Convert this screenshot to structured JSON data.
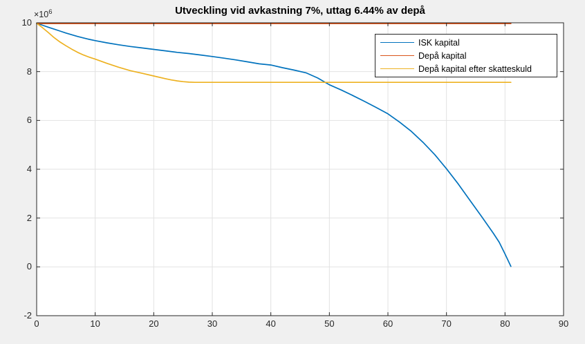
{
  "figure": {
    "background": "#f0f0f0",
    "plot_background": "#ffffff",
    "axis_color": "#262626",
    "grid_color": "#e2e2e2"
  },
  "y_axis_multiplier": {
    "base": "×10",
    "exponent": "6"
  },
  "chart_data": {
    "type": "line",
    "title": "Utveckling vid avkastning 7%, uttag 6.44% av depå",
    "xlabel": "",
    "ylabel": "",
    "xlim": [
      0,
      90
    ],
    "ylim_millions": [
      -2,
      10
    ],
    "xticks": [
      0,
      10,
      20,
      30,
      40,
      50,
      60,
      70,
      80,
      90
    ],
    "yticks": [
      -2,
      0,
      2,
      4,
      6,
      8,
      10
    ],
    "grid": true,
    "legend_position": "top-right",
    "y_unit": "x10^6",
    "series": [
      {
        "name": "ISK kapital",
        "color": "#0072BD",
        "points": [
          [
            0,
            9.98
          ],
          [
            1,
            9.9
          ],
          [
            2,
            9.82
          ],
          [
            3,
            9.74
          ],
          [
            4,
            9.66
          ],
          [
            5,
            9.58
          ],
          [
            6,
            9.51
          ],
          [
            7,
            9.44
          ],
          [
            8,
            9.38
          ],
          [
            9,
            9.32
          ],
          [
            10,
            9.27
          ],
          [
            12,
            9.18
          ],
          [
            14,
            9.1
          ],
          [
            16,
            9.03
          ],
          [
            18,
            8.97
          ],
          [
            20,
            8.91
          ],
          [
            22,
            8.85
          ],
          [
            24,
            8.79
          ],
          [
            26,
            8.74
          ],
          [
            28,
            8.68
          ],
          [
            30,
            8.62
          ],
          [
            32,
            8.55
          ],
          [
            34,
            8.48
          ],
          [
            36,
            8.4
          ],
          [
            38,
            8.32
          ],
          [
            40,
            8.27
          ],
          [
            42,
            8.16
          ],
          [
            44,
            8.06
          ],
          [
            46,
            7.95
          ],
          [
            48,
            7.74
          ],
          [
            50,
            7.46
          ],
          [
            52,
            7.25
          ],
          [
            54,
            7.02
          ],
          [
            56,
            6.78
          ],
          [
            58,
            6.53
          ],
          [
            60,
            6.27
          ],
          [
            62,
            5.93
          ],
          [
            64,
            5.55
          ],
          [
            66,
            5.1
          ],
          [
            68,
            4.6
          ],
          [
            70,
            4.02
          ],
          [
            72,
            3.4
          ],
          [
            74,
            2.73
          ],
          [
            76,
            2.06
          ],
          [
            78,
            1.38
          ],
          [
            79,
            1.01
          ],
          [
            80,
            0.53
          ],
          [
            81,
            0.02
          ]
        ]
      },
      {
        "name": "Depå kapital",
        "color": "#D95319",
        "points": [
          [
            0,
            9.97
          ],
          [
            81,
            9.97
          ]
        ]
      },
      {
        "name": "Depå kapital efter skatteskuld",
        "color": "#EDB120",
        "points": [
          [
            0,
            9.98
          ],
          [
            1,
            9.8
          ],
          [
            2,
            9.6
          ],
          [
            3,
            9.39
          ],
          [
            4,
            9.21
          ],
          [
            5,
            9.06
          ],
          [
            6,
            8.92
          ],
          [
            7,
            8.79
          ],
          [
            8,
            8.68
          ],
          [
            9,
            8.59
          ],
          [
            10,
            8.51
          ],
          [
            12,
            8.34
          ],
          [
            14,
            8.18
          ],
          [
            16,
            8.04
          ],
          [
            18,
            7.93
          ],
          [
            20,
            7.82
          ],
          [
            22,
            7.71
          ],
          [
            23,
            7.66
          ],
          [
            24,
            7.62
          ],
          [
            25,
            7.59
          ],
          [
            26,
            7.57
          ],
          [
            27,
            7.56
          ],
          [
            81,
            7.56
          ]
        ]
      }
    ]
  }
}
